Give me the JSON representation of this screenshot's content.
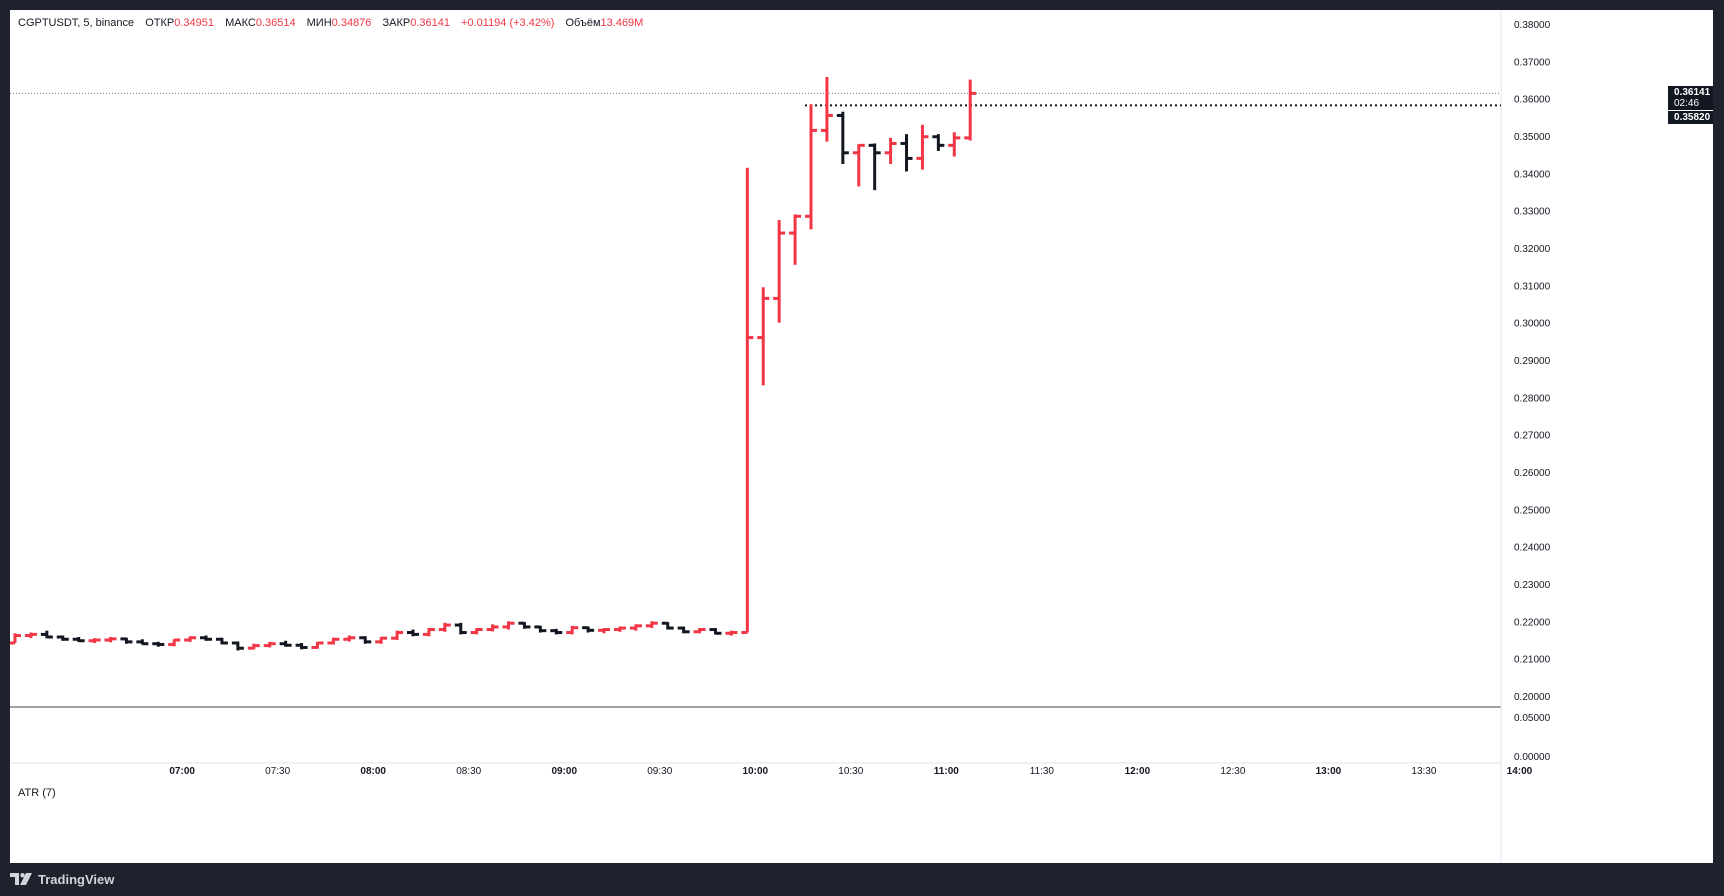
{
  "legend": {
    "symbol": "CGPTUSDT, 5, binance",
    "open_label": "ОТКР",
    "open": "0.34951",
    "high_label": "МАКС",
    "high": "0.36514",
    "low_label": "МИН",
    "low": "0.34876",
    "close_label": "ЗАКР",
    "close": "0.36141",
    "change": "+0.01194 (+3.42%)",
    "volume_label": "Объём",
    "volume": "13.469M"
  },
  "indicator": {
    "label": "ATR (7)"
  },
  "price_tags": {
    "last_price": "0.36141",
    "countdown": "02:46",
    "prev_close": "0.35820"
  },
  "footer": {
    "brand": "TradingView"
  },
  "colors": {
    "up": "#f23645",
    "down": "#131722",
    "background": "#ffffff",
    "frame": "#1e222d"
  },
  "chart_data": {
    "type": "ohlc",
    "y_ticks": [
      "0.38000",
      "0.37000",
      "0.36000",
      "0.35000",
      "0.34000",
      "0.33000",
      "0.32000",
      "0.31000",
      "0.30000",
      "0.29000",
      "0.28000",
      "0.27000",
      "0.26000",
      "0.25000",
      "0.24000",
      "0.23000",
      "0.22000",
      "0.21000",
      "0.20000"
    ],
    "ylim": [
      0.1995,
      0.3835
    ],
    "atr_ticks": [
      "0.05000",
      "0.00000"
    ],
    "x_ticks": [
      {
        "label": "07:00",
        "bold": true,
        "idx": 10.5
      },
      {
        "label": "07:30",
        "bold": false,
        "idx": 16.5
      },
      {
        "label": "08:00",
        "bold": true,
        "idx": 22.5
      },
      {
        "label": "08:30",
        "bold": false,
        "idx": 28.5
      },
      {
        "label": "09:00",
        "bold": true,
        "idx": 34.5
      },
      {
        "label": "09:30",
        "bold": false,
        "idx": 40.5
      },
      {
        "label": "10:00",
        "bold": true,
        "idx": 46.5
      },
      {
        "label": "10:30",
        "bold": false,
        "idx": 52.5
      },
      {
        "label": "11:00",
        "bold": true,
        "idx": 58.5
      },
      {
        "label": "11:30",
        "bold": false,
        "idx": 64.5
      },
      {
        "label": "12:00",
        "bold": true,
        "idx": 70.5
      },
      {
        "label": "12:30",
        "bold": false,
        "idx": 76.5
      },
      {
        "label": "13:00",
        "bold": true,
        "idx": 82.5
      },
      {
        "label": "13:30",
        "bold": false,
        "idx": 88.5
      },
      {
        "label": "14:00",
        "bold": true,
        "idx": 94.5
      }
    ],
    "bars": [
      [
        0.2142,
        0.2168,
        0.2142,
        0.2162
      ],
      [
        0.2162,
        0.217,
        0.2155,
        0.2165
      ],
      [
        0.2165,
        0.2175,
        0.2155,
        0.2158
      ],
      [
        0.2158,
        0.2162,
        0.2148,
        0.2152
      ],
      [
        0.2152,
        0.2158,
        0.2145,
        0.2148
      ],
      [
        0.2148,
        0.2155,
        0.2142,
        0.215
      ],
      [
        0.215,
        0.2158,
        0.2144,
        0.2153
      ],
      [
        0.2153,
        0.2156,
        0.214,
        0.2145
      ],
      [
        0.2145,
        0.2152,
        0.2138,
        0.214
      ],
      [
        0.214,
        0.2145,
        0.2132,
        0.2138
      ],
      [
        0.2138,
        0.2152,
        0.2133,
        0.215
      ],
      [
        0.215,
        0.216,
        0.2145,
        0.2156
      ],
      [
        0.2156,
        0.2162,
        0.2148,
        0.2152
      ],
      [
        0.2152,
        0.2156,
        0.2138,
        0.2142
      ],
      [
        0.2142,
        0.2146,
        0.2122,
        0.2128
      ],
      [
        0.2128,
        0.214,
        0.2125,
        0.2135
      ],
      [
        0.2135,
        0.2145,
        0.213,
        0.214
      ],
      [
        0.214,
        0.2148,
        0.2132,
        0.2136
      ],
      [
        0.2136,
        0.2142,
        0.2125,
        0.213
      ],
      [
        0.213,
        0.2145,
        0.2127,
        0.2142
      ],
      [
        0.2142,
        0.2156,
        0.2138,
        0.2152
      ],
      [
        0.2152,
        0.2162,
        0.2146,
        0.2156
      ],
      [
        0.2156,
        0.216,
        0.214,
        0.2145
      ],
      [
        0.2145,
        0.2158,
        0.214,
        0.2155
      ],
      [
        0.2155,
        0.2175,
        0.215,
        0.217
      ],
      [
        0.217,
        0.2178,
        0.216,
        0.2165
      ],
      [
        0.2165,
        0.2182,
        0.216,
        0.2178
      ],
      [
        0.2178,
        0.2196,
        0.2172,
        0.219
      ],
      [
        0.219,
        0.2196,
        0.2165,
        0.217
      ],
      [
        0.217,
        0.2182,
        0.2165,
        0.2178
      ],
      [
        0.2178,
        0.2192,
        0.2173,
        0.2185
      ],
      [
        0.2185,
        0.22,
        0.2178,
        0.2195
      ],
      [
        0.2195,
        0.2198,
        0.218,
        0.2185
      ],
      [
        0.2185,
        0.2188,
        0.217,
        0.2175
      ],
      [
        0.2175,
        0.218,
        0.2165,
        0.217
      ],
      [
        0.217,
        0.2188,
        0.2165,
        0.2183
      ],
      [
        0.2183,
        0.2186,
        0.217,
        0.2176
      ],
      [
        0.2176,
        0.2182,
        0.2168,
        0.2178
      ],
      [
        0.2178,
        0.2186,
        0.2172,
        0.2182
      ],
      [
        0.2182,
        0.2192,
        0.2175,
        0.2188
      ],
      [
        0.2188,
        0.22,
        0.2182,
        0.2195
      ],
      [
        0.2195,
        0.2198,
        0.2178,
        0.2182
      ],
      [
        0.2182,
        0.2186,
        0.2168,
        0.2172
      ],
      [
        0.2172,
        0.2182,
        0.2168,
        0.2178
      ],
      [
        0.2178,
        0.2182,
        0.2165,
        0.2168
      ],
      [
        0.2168,
        0.2175,
        0.2162,
        0.217
      ],
      [
        0.217,
        0.3415,
        0.217,
        0.296
      ],
      [
        0.296,
        0.3095,
        0.2832,
        0.3065
      ],
      [
        0.3065,
        0.3275,
        0.3,
        0.324
      ],
      [
        0.324,
        0.329,
        0.3155,
        0.3285
      ],
      [
        0.3285,
        0.3585,
        0.325,
        0.3515
      ],
      [
        0.3515,
        0.3658,
        0.3485,
        0.3555
      ],
      [
        0.3555,
        0.3565,
        0.3425,
        0.3455
      ],
      [
        0.3455,
        0.3478,
        0.3365,
        0.3475
      ],
      [
        0.3475,
        0.348,
        0.3355,
        0.3455
      ],
      [
        0.3455,
        0.3495,
        0.3425,
        0.348
      ],
      [
        0.348,
        0.3505,
        0.3405,
        0.344
      ],
      [
        0.344,
        0.353,
        0.341,
        0.3498
      ],
      [
        0.3498,
        0.3505,
        0.346,
        0.3475
      ],
      [
        0.3475,
        0.351,
        0.3445,
        0.3495
      ],
      [
        0.3495,
        0.3651,
        0.3488,
        0.3614
      ]
    ]
  }
}
